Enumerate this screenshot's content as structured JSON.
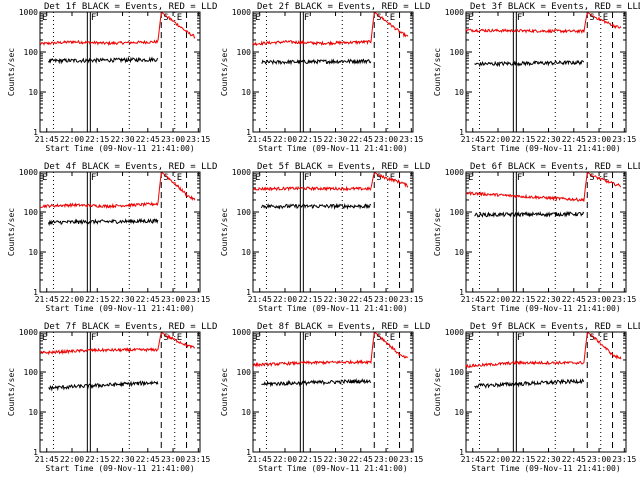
{
  "chart_data": {
    "type": "line",
    "x_tick_labels": [
      "21:45",
      "22:00",
      "22:15",
      "22:30",
      "22:45",
      "23:00",
      "23:15"
    ],
    "x_range_minutes": [
      0,
      95
    ],
    "ylabel": "Counts/sec",
    "y_scale": "log",
    "ylim": [
      1,
      1000
    ],
    "y_tick_labels": [
      "1",
      "10",
      "100",
      "1000"
    ],
    "legend_text": "BLACK = Events, RED = LLD",
    "xlabel": "Start Time (09-Nov-11 21:41:00)",
    "series_colors": {
      "events": "#000000",
      "lld": "#ee0000"
    },
    "markers": [
      {
        "label": "E",
        "minute": 0,
        "style": "solid"
      },
      {
        "label": "",
        "minute": 8,
        "style": "dotted"
      },
      {
        "label": "F",
        "minute": 29,
        "style": "double"
      },
      {
        "label": "",
        "minute": 53,
        "style": "dotted"
      },
      {
        "label": "S",
        "minute": 72,
        "style": "dashed"
      },
      {
        "label": "E",
        "minute": 80,
        "style": "dotted"
      },
      {
        "label": "",
        "minute": 87,
        "style": "dashed"
      }
    ],
    "panels": [
      {
        "title": "Det 1f",
        "events": [
          [
            5,
            60
          ],
          [
            70,
            65
          ]
        ],
        "lld": [
          [
            0,
            160
          ],
          [
            20,
            180
          ],
          [
            40,
            165
          ],
          [
            70,
            180
          ],
          [
            72,
            1000
          ],
          [
            75,
            800
          ],
          [
            88,
            300
          ],
          [
            92,
            240
          ]
        ]
      },
      {
        "title": "Det 2f",
        "events": [
          [
            5,
            55
          ],
          [
            70,
            60
          ]
        ],
        "lld": [
          [
            0,
            160
          ],
          [
            20,
            180
          ],
          [
            40,
            165
          ],
          [
            70,
            180
          ],
          [
            72,
            1000
          ],
          [
            75,
            800
          ],
          [
            88,
            300
          ],
          [
            92,
            240
          ]
        ]
      },
      {
        "title": "Det 3f",
        "events": [
          [
            5,
            50
          ],
          [
            70,
            55
          ]
        ],
        "lld": [
          [
            0,
            350
          ],
          [
            30,
            340
          ],
          [
            70,
            330
          ],
          [
            72,
            1000
          ],
          [
            75,
            800
          ],
          [
            88,
            450
          ],
          [
            92,
            400
          ]
        ]
      },
      {
        "title": "Det 4f",
        "events": [
          [
            5,
            55
          ],
          [
            70,
            60
          ]
        ],
        "lld": [
          [
            0,
            140
          ],
          [
            20,
            150
          ],
          [
            40,
            140
          ],
          [
            70,
            160
          ],
          [
            72,
            1000
          ],
          [
            75,
            800
          ],
          [
            88,
            250
          ],
          [
            92,
            200
          ]
        ]
      },
      {
        "title": "Det 5f",
        "events": [
          [
            5,
            140
          ],
          [
            70,
            140
          ]
        ],
        "lld": [
          [
            0,
            380
          ],
          [
            30,
            390
          ],
          [
            70,
            380
          ],
          [
            72,
            1000
          ],
          [
            75,
            800
          ],
          [
            88,
            550
          ],
          [
            92,
            450
          ]
        ]
      },
      {
        "title": "Det 6f",
        "events": [
          [
            5,
            85
          ],
          [
            70,
            90
          ]
        ],
        "lld": [
          [
            0,
            300
          ],
          [
            30,
            250
          ],
          [
            70,
            200
          ],
          [
            72,
            1000
          ],
          [
            75,
            800
          ],
          [
            88,
            500
          ],
          [
            92,
            450
          ]
        ]
      },
      {
        "title": "Det 7f",
        "events": [
          [
            5,
            40
          ],
          [
            70,
            55
          ]
        ],
        "lld": [
          [
            0,
            300
          ],
          [
            30,
            350
          ],
          [
            70,
            360
          ],
          [
            72,
            1000
          ],
          [
            75,
            800
          ],
          [
            88,
            450
          ],
          [
            92,
            400
          ]
        ]
      },
      {
        "title": "Det 8f",
        "events": [
          [
            5,
            50
          ],
          [
            70,
            60
          ]
        ],
        "lld": [
          [
            0,
            150
          ],
          [
            30,
            170
          ],
          [
            70,
            180
          ],
          [
            72,
            1000
          ],
          [
            75,
            800
          ],
          [
            88,
            250
          ],
          [
            92,
            220
          ]
        ]
      },
      {
        "title": "Det 9f",
        "events": [
          [
            5,
            45
          ],
          [
            70,
            60
          ]
        ],
        "lld": [
          [
            0,
            140
          ],
          [
            30,
            170
          ],
          [
            70,
            170
          ],
          [
            72,
            1000
          ],
          [
            75,
            800
          ],
          [
            88,
            250
          ],
          [
            92,
            220
          ]
        ]
      }
    ]
  }
}
